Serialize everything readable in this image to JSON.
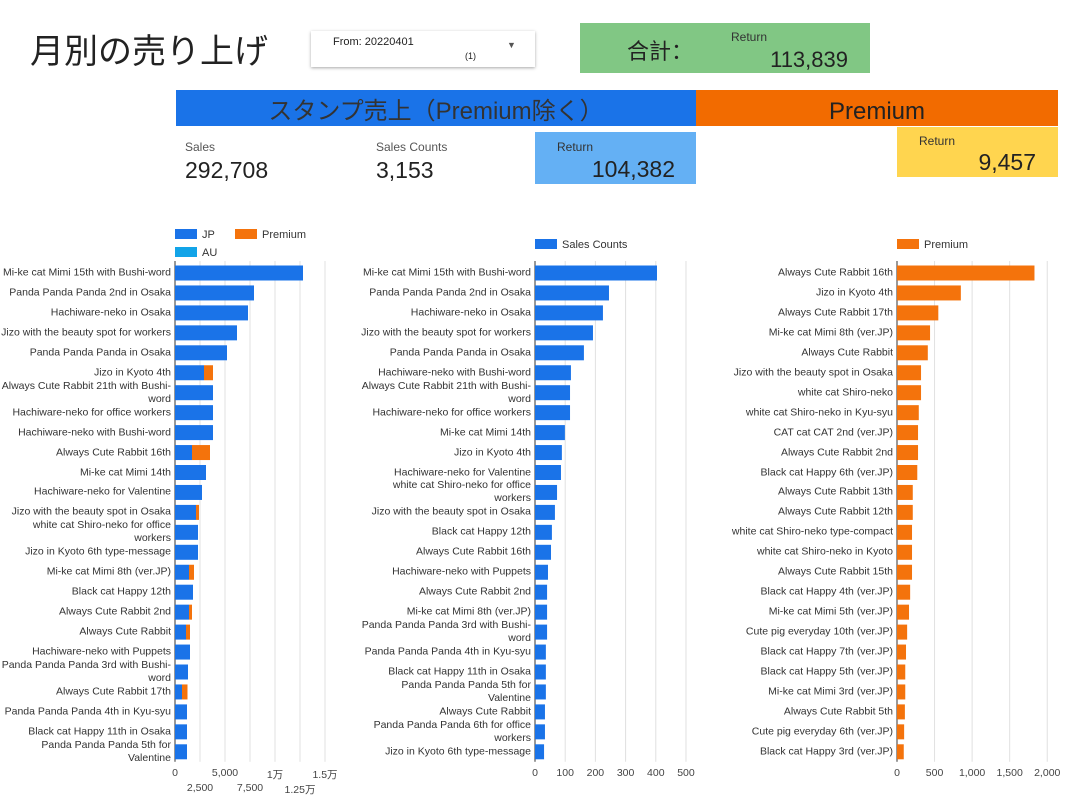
{
  "header": {
    "title": "月別の売り上げ",
    "filter": {
      "label": "From: 20220401",
      "count": "(1)"
    },
    "total": {
      "label": "合計：",
      "return_label": "Return",
      "value": "113,839"
    }
  },
  "sections": [
    {
      "title": "スタンプ売上（Premium除く）"
    },
    {
      "title": "Premium"
    }
  ],
  "kpis": {
    "sales": {
      "label": "Sales",
      "value": "292,708"
    },
    "sales_counts": {
      "label": "Sales Counts",
      "value": "3,153"
    },
    "return_stamp": {
      "label": "Return",
      "value": "104,382"
    },
    "return_premium": {
      "label": "Return",
      "value": "9,457"
    }
  },
  "chart_data": [
    {
      "type": "bar",
      "orientation": "horizontal",
      "stacked": true,
      "grid": true,
      "legend": "top-left",
      "categories": [
        "Mi-ke cat Mimi 15th with Bushi-word",
        "Panda Panda Panda 2nd in Osaka",
        "Hachiware-neko in Osaka",
        "Jizo with the beauty spot for workers",
        "Panda Panda Panda in Osaka",
        "Jizo in Kyoto 4th",
        "Always Cute Rabbit 21th with Bushi-word",
        "Hachiware-neko for office workers",
        "Hachiware-neko with Bushi-word",
        "Always Cute Rabbit 16th",
        "Mi-ke cat Mimi 14th",
        "Hachiware-neko for Valentine",
        "Jizo with the beauty spot in Osaka",
        "white cat Shiro-neko for office workers",
        "Jizo in Kyoto 6th type-message",
        "Mi-ke cat Mimi 8th (ver.JP)",
        "Black cat Happy 12th",
        "Always Cute Rabbit 2nd",
        "Always Cute Rabbit",
        "Hachiware-neko with Puppets",
        "Panda Panda Panda 3rd with Bushi-word",
        "Always Cute Rabbit 17th",
        "Panda Panda Panda 4th in Kyu-syu",
        "Black cat Happy 11th in Osaka",
        "Panda Panda Panda 5th for Valentine"
      ],
      "series": [
        {
          "name": "JP",
          "color": "#1a73e8",
          "values": [
            12800,
            7900,
            7300,
            6200,
            5200,
            2900,
            3800,
            3800,
            3800,
            1700,
            3100,
            2700,
            2100,
            2300,
            2300,
            1400,
            1800,
            1400,
            1100,
            1500,
            1300,
            700,
            1200,
            1200,
            1200
          ]
        },
        {
          "name": "Premium",
          "color": "#f4730c",
          "values": [
            0,
            0,
            0,
            0,
            0,
            900,
            0,
            0,
            0,
            1800,
            0,
            0,
            300,
            0,
            0,
            500,
            0,
            300,
            400,
            0,
            0,
            550,
            0,
            0,
            0
          ]
        },
        {
          "name": "AU",
          "color": "#12a4e8",
          "values": [
            0,
            0,
            0,
            0,
            0,
            0,
            0,
            0,
            0,
            0,
            0,
            0,
            0,
            0,
            0,
            0,
            0,
            0,
            0,
            0,
            0,
            0,
            0,
            0,
            0
          ]
        }
      ],
      "xlim": [
        0,
        15000
      ],
      "xticks": [
        0,
        {
          "value": 2500,
          "label": "2,500"
        },
        {
          "value": 5000,
          "label": "5,000"
        },
        {
          "value": 7500,
          "label": "7,500"
        },
        {
          "value": 10000,
          "label": "1万"
        },
        {
          "value": 12500,
          "label": "1.25万"
        },
        {
          "value": 15000,
          "label": "1.5万"
        }
      ]
    },
    {
      "type": "bar",
      "orientation": "horizontal",
      "stacked": true,
      "grid": true,
      "legend": "top-left",
      "categories": [
        "Mi-ke cat Mimi 15th with Bushi-word",
        "Panda Panda Panda 2nd in Osaka",
        "Hachiware-neko in Osaka",
        "Jizo with the beauty spot for workers",
        "Panda Panda Panda in Osaka",
        "Hachiware-neko with Bushi-word",
        "Always Cute Rabbit 21th with Bushi-word",
        "Hachiware-neko for office workers",
        "Mi-ke cat Mimi 14th",
        "Jizo in Kyoto 4th",
        "Hachiware-neko for Valentine",
        "white cat Shiro-neko for office workers",
        "Jizo with the beauty spot in Osaka",
        "Black cat Happy 12th",
        "Always Cute Rabbit 16th",
        "Hachiware-neko with Puppets",
        "Always Cute Rabbit 2nd",
        "Mi-ke cat Mimi 8th (ver.JP)",
        "Panda Panda Panda 3rd with Bushi-word",
        "Panda Panda Panda 4th in Kyu-syu",
        "Black cat Happy 11th in Osaka",
        "Panda Panda Panda 5th for Valentine",
        "Always Cute Rabbit",
        "Panda Panda Panda 6th for office workers",
        "Jizo in Kyoto 6th type-message"
      ],
      "series": [
        {
          "name": "Sales Counts",
          "color": "#1a73e8",
          "values": [
            404,
            245,
            225,
            192,
            162,
            119,
            116,
            116,
            99,
            89,
            86,
            73,
            66,
            56,
            53,
            43,
            40,
            40,
            40,
            36,
            36,
            36,
            33,
            33,
            30
          ]
        }
      ],
      "xlim": [
        0,
        510
      ],
      "xticks": [
        0,
        100,
        200,
        300,
        400,
        500
      ]
    },
    {
      "type": "bar",
      "orientation": "horizontal",
      "stacked": true,
      "grid": true,
      "legend": "top-left",
      "categories": [
        "Always Cute Rabbit 16th",
        "Jizo in Kyoto 4th",
        "Always Cute Rabbit 17th",
        "Mi-ke cat Mimi 8th (ver.JP)",
        "Always Cute Rabbit",
        "Jizo with the beauty spot in Osaka",
        "white cat Shiro-neko",
        "white cat Shiro-neko in Kyu-syu",
        "CAT cat CAT 2nd (ver.JP)",
        "Always Cute Rabbit 2nd",
        "Black cat Happy 6th (ver.JP)",
        "Always Cute Rabbit 13th",
        "Always Cute Rabbit 12th",
        "white cat Shiro-neko type-compact",
        "white cat Shiro-neko in Kyoto",
        "Always Cute Rabbit 15th",
        "Black cat Happy 4th (ver.JP)",
        "Mi-ke cat Mimi 5th (ver.JP)",
        "Cute pig everyday 10th (ver.JP)",
        "Black cat Happy 7th (ver.JP)",
        "Black cat Happy 5th (ver.JP)",
        "Mi-ke cat Mimi 3rd (ver.JP)",
        "Always Cute Rabbit 5th",
        "Cute pig everyday 6th (ver.JP)",
        "Black cat Happy 3rd (ver.JP)"
      ],
      "series": [
        {
          "name": "Premium",
          "color": "#f4730c",
          "values": [
            1830,
            850,
            550,
            440,
            410,
            320,
            320,
            290,
            280,
            280,
            270,
            210,
            210,
            200,
            200,
            200,
            175,
            160,
            135,
            120,
            110,
            110,
            105,
            95,
            90
          ]
        }
      ],
      "xlim": [
        0,
        2050
      ],
      "xticks": [
        0,
        500,
        {
          "value": 1000,
          "label": "1,000"
        },
        {
          "value": 1500,
          "label": "1,500"
        },
        {
          "value": 2000,
          "label": "2,000"
        }
      ]
    }
  ]
}
